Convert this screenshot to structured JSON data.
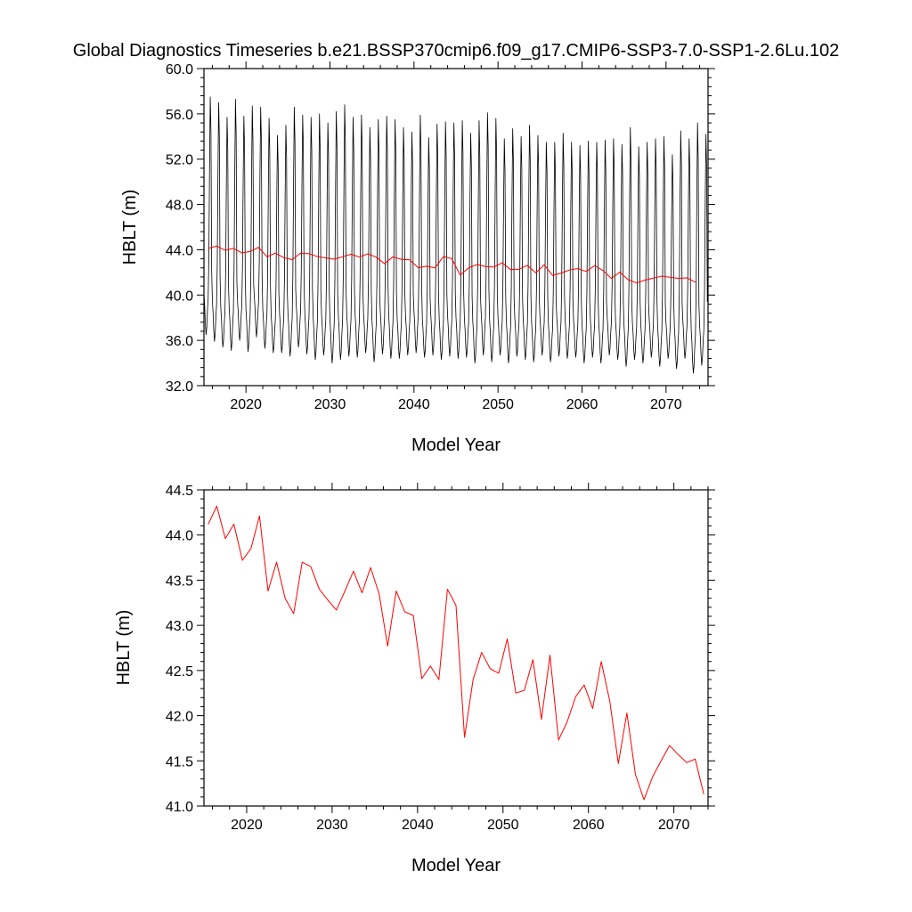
{
  "title": "Global Diagnostics Timeseries b.e21.BSSP370cmip6.f09_g17.CMIP6-SSP3-7.0-SSP1-2.6Lu.102",
  "colors": {
    "monthly": "#000000",
    "annual": "#ff0000",
    "axes": "#000000"
  },
  "chart_data": [
    {
      "type": "line",
      "xlabel": "Model Year",
      "ylabel": "HBLT (m)",
      "xlim": [
        2015,
        2075
      ],
      "ylim": [
        32.0,
        60.0
      ],
      "x_ticks": [
        2020,
        2030,
        2040,
        2050,
        2060,
        2070
      ],
      "x_tick_labels": [
        "2020",
        "2030",
        "2040",
        "2050",
        "2060",
        "2070"
      ],
      "y_ticks": [
        32.0,
        36.0,
        40.0,
        44.0,
        48.0,
        52.0,
        56.0,
        60.0
      ],
      "y_tick_labels": [
        "32.0",
        "36.0",
        "40.0",
        "44.0",
        "48.0",
        "52.0",
        "56.0",
        "60.0"
      ],
      "grid": false,
      "series": [
        {
          "key": "monthly",
          "color": "#000000",
          "x_start": 2015.0,
          "x_step": 0.08333,
          "monthly_cycle_shape": [
            40.0,
            39.0,
            37.5,
            36.6,
            37.2,
            38.6,
            39.6,
            43.0,
            50.5,
            56.3,
            53.5,
            42.0
          ],
          "yearly_max": [
            57.5,
            57.0,
            55.7,
            57.3,
            55.8,
            56.7,
            56.6,
            55.6,
            54.1,
            55.0,
            56.6,
            55.9,
            55.7,
            56.0,
            55.2,
            56.2,
            56.8,
            55.7,
            55.9,
            54.8,
            55.5,
            55.8,
            55.5,
            54.8,
            54.4,
            55.9,
            53.9,
            55.1,
            55.3,
            55.2,
            55.4,
            54.3,
            55.4,
            56.1,
            55.6,
            53.8,
            54.7,
            54.0,
            55.0,
            54.1,
            53.5,
            53.5,
            54.3,
            53.5,
            53.2,
            53.6,
            53.5,
            53.7,
            53.8,
            53.3,
            54.8,
            53.1,
            53.5,
            53.8,
            54.0,
            52.4,
            54.5,
            53.8,
            55.2,
            54.2
          ],
          "yearly_min": [
            36.5,
            35.9,
            35.4,
            35.1,
            36.0,
            35.0,
            36.3,
            35.3,
            34.9,
            34.9,
            34.6,
            35.4,
            34.8,
            34.3,
            34.7,
            34.0,
            34.3,
            34.6,
            34.5,
            34.9,
            34.1,
            34.8,
            34.4,
            34.4,
            34.7,
            34.9,
            34.5,
            34.7,
            34.3,
            34.6,
            34.4,
            34.5,
            34.0,
            34.7,
            34.1,
            34.7,
            34.0,
            34.6,
            34.3,
            34.1,
            34.7,
            34.1,
            34.6,
            34.4,
            34.5,
            34.0,
            34.5,
            34.0,
            34.7,
            34.3,
            33.7,
            34.3,
            34.0,
            34.5,
            33.7,
            34.4,
            33.5,
            34.4,
            33.1,
            33.8
          ]
        },
        {
          "key": "annual",
          "color": "#ff0000",
          "x_start": 2015.5,
          "x_step": 1,
          "values": [
            44.12,
            44.32,
            43.96,
            44.12,
            43.72,
            43.85,
            44.21,
            43.38,
            43.7,
            43.3,
            43.13,
            43.7,
            43.65,
            43.4,
            43.28,
            43.17,
            43.38,
            43.6,
            43.36,
            43.64,
            43.35,
            42.77,
            43.38,
            43.15,
            43.11,
            42.41,
            42.55,
            42.4,
            43.4,
            43.22,
            41.76,
            42.4,
            42.7,
            42.52,
            42.47,
            42.85,
            42.25,
            42.28,
            42.62,
            41.96,
            42.67,
            41.73,
            41.93,
            42.21,
            42.34,
            42.08,
            42.6,
            42.16,
            41.47,
            42.03,
            41.35,
            41.07,
            41.32,
            41.5,
            41.67,
            41.57,
            41.48,
            41.52,
            41.13
          ]
        }
      ]
    },
    {
      "type": "line",
      "xlabel": "Model Year",
      "ylabel": "HBLT (m)",
      "xlim": [
        2015,
        2074
      ],
      "ylim": [
        41.0,
        44.5
      ],
      "x_ticks": [
        2020,
        2030,
        2040,
        2050,
        2060,
        2070
      ],
      "x_tick_labels": [
        "2020",
        "2030",
        "2040",
        "2050",
        "2060",
        "2070"
      ],
      "y_ticks": [
        41.0,
        41.5,
        42.0,
        42.5,
        43.0,
        43.5,
        44.0,
        44.5
      ],
      "y_tick_labels": [
        "41.0",
        "41.5",
        "42.0",
        "42.5",
        "43.0",
        "43.5",
        "44.0",
        "44.5"
      ],
      "grid": false,
      "series": [
        {
          "key": "annual",
          "color": "#ff0000",
          "x_start": 2015.5,
          "x_step": 1,
          "values": [
            44.12,
            44.32,
            43.96,
            44.12,
            43.72,
            43.85,
            44.21,
            43.38,
            43.7,
            43.3,
            43.13,
            43.7,
            43.65,
            43.4,
            43.28,
            43.17,
            43.38,
            43.6,
            43.36,
            43.64,
            43.35,
            42.77,
            43.38,
            43.15,
            43.11,
            42.41,
            42.55,
            42.4,
            43.4,
            43.22,
            41.76,
            42.4,
            42.7,
            42.52,
            42.47,
            42.85,
            42.25,
            42.28,
            42.62,
            41.96,
            42.67,
            41.73,
            41.93,
            42.21,
            42.34,
            42.08,
            42.6,
            42.16,
            41.47,
            42.03,
            41.35,
            41.07,
            41.32,
            41.5,
            41.67,
            41.57,
            41.48,
            41.52,
            41.13
          ]
        }
      ]
    }
  ]
}
